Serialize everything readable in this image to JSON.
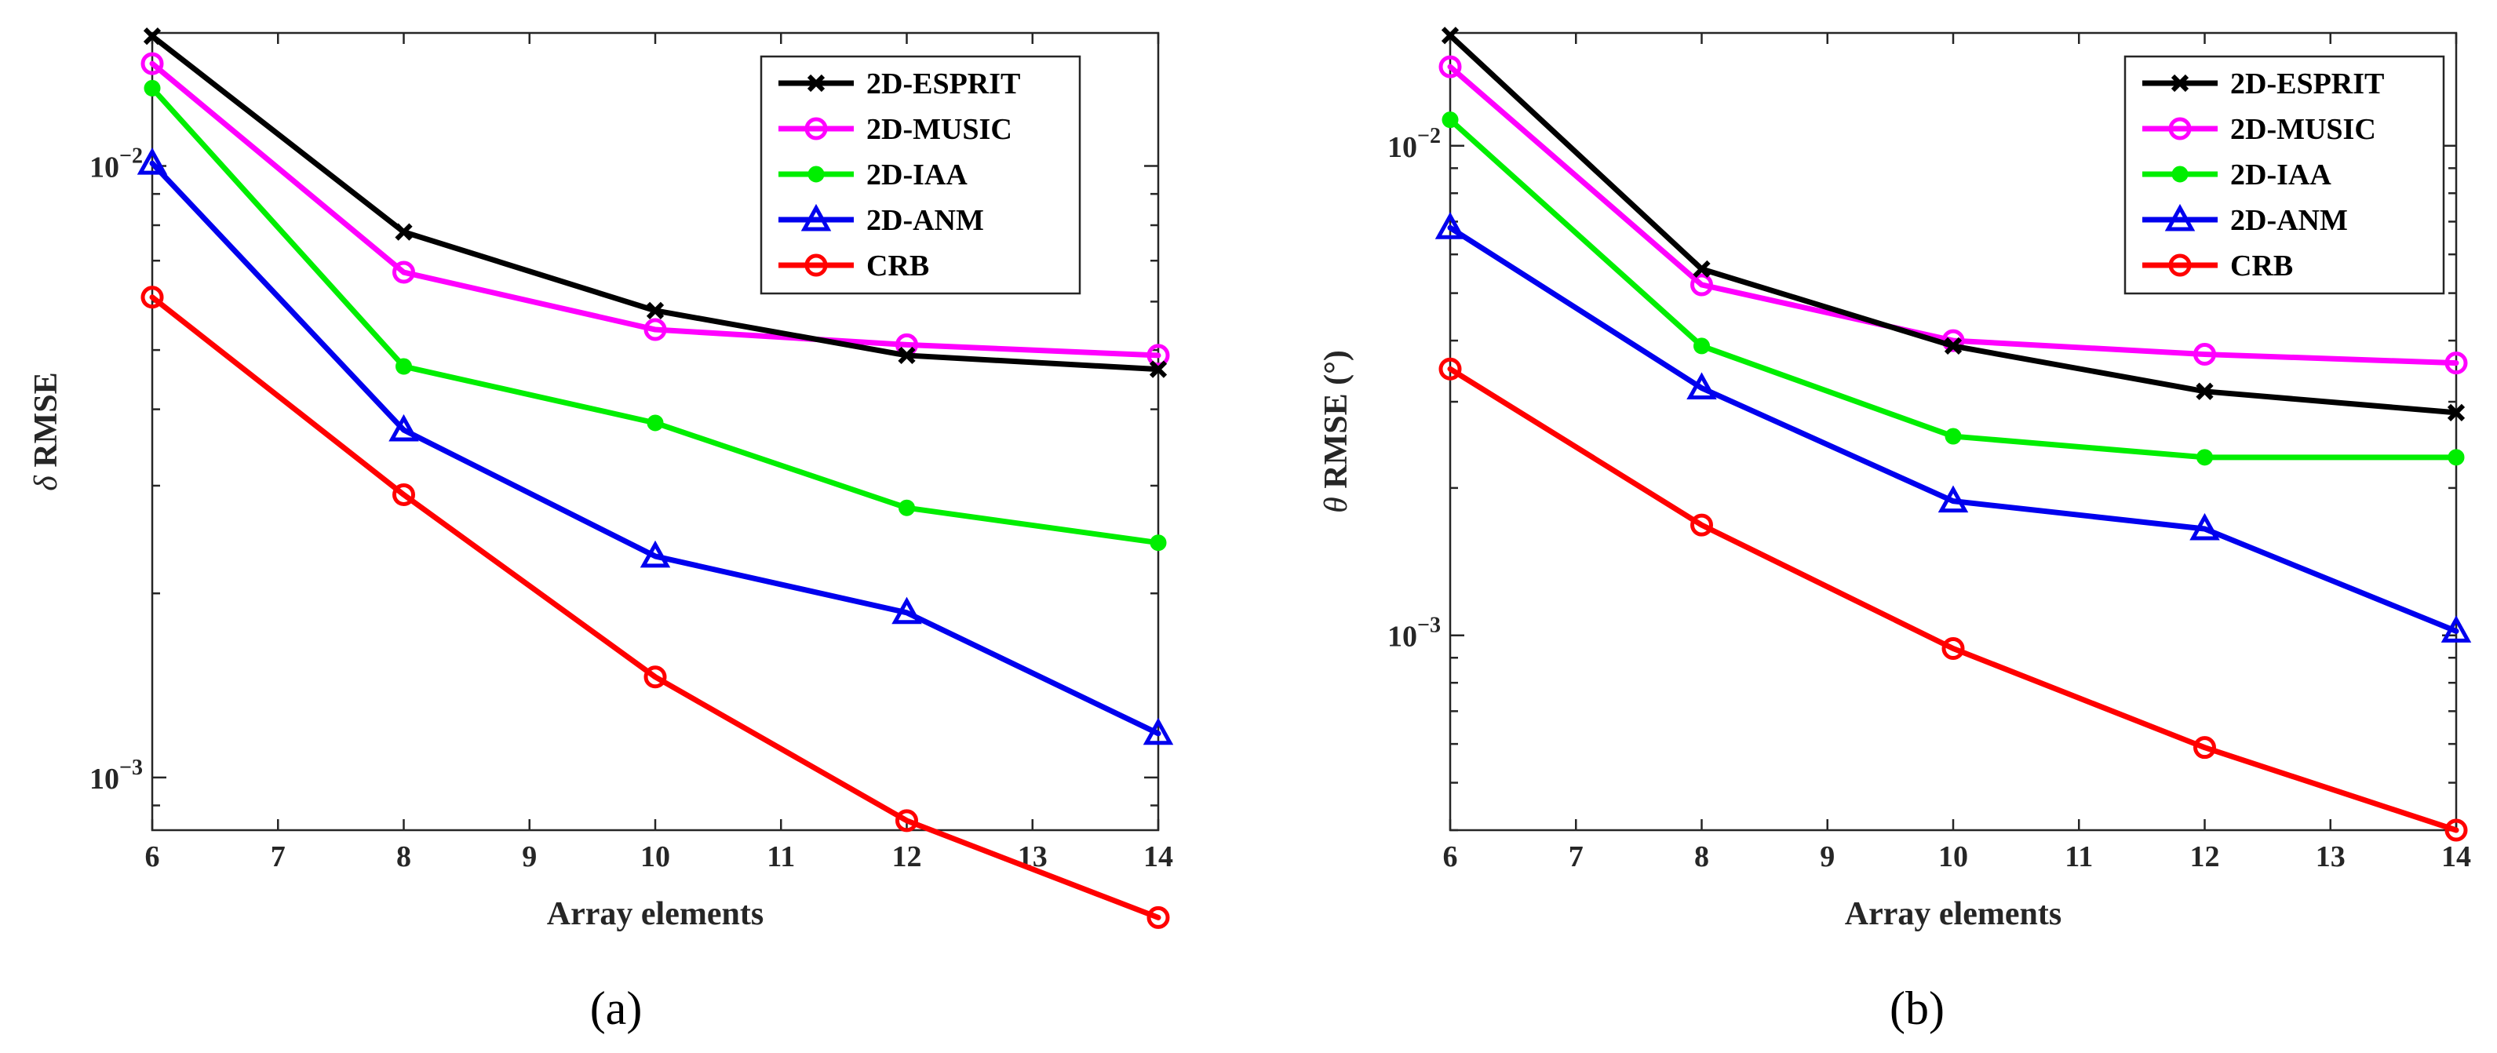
{
  "chart_data": [
    {
      "type": "line",
      "caption": "(a)",
      "xlabel": "Array elements",
      "ylabel_symbol": "δ",
      "ylabel_text": " RMSE",
      "yscale": "log",
      "xlim": [
        6,
        14
      ],
      "ylim": [
        0.00082,
        0.0165
      ],
      "xticks": [
        6,
        7,
        8,
        9,
        10,
        11,
        12,
        13,
        14
      ],
      "yticks": [
        {
          "value": 0.001,
          "label_base": "10",
          "label_exp": "−3"
        },
        {
          "value": 0.01,
          "label_base": "10",
          "label_exp": "−2"
        }
      ],
      "legend_position": "top-right",
      "x": [
        6,
        8,
        10,
        12,
        14
      ],
      "series": [
        {
          "name": "2D-ESPRIT",
          "values": [
            0.0163,
            0.0078,
            0.0058,
            0.0049,
            0.00465
          ],
          "color": "#000000",
          "marker": "x"
        },
        {
          "name": "2D-MUSIC",
          "values": [
            0.0147,
            0.0067,
            0.0054,
            0.0051,
            0.0049
          ],
          "color": "#ff00ff",
          "marker": "circle"
        },
        {
          "name": "2D-IAA",
          "values": [
            0.0134,
            0.0047,
            0.0038,
            0.00276,
            0.00242
          ],
          "color": "#00ee00",
          "marker": "dot"
        },
        {
          "name": "2D-ANM",
          "values": [
            0.0101,
            0.0037,
            0.0023,
            0.00186,
            0.00118
          ],
          "color": "#0000ee",
          "marker": "triangle"
        },
        {
          "name": "CRB",
          "values": [
            0.0061,
            0.0029,
            0.00146,
            0.00085,
            0.00059
          ],
          "color": "#ff0000",
          "marker": "circle"
        }
      ]
    },
    {
      "type": "line",
      "caption": "(b)",
      "xlabel": "Array elements",
      "ylabel_symbol": "θ",
      "ylabel_text": " RMSE (°)",
      "yscale": "log",
      "xlim": [
        6,
        14
      ],
      "ylim": [
        0.0004,
        0.017
      ],
      "xticks": [
        6,
        7,
        8,
        9,
        10,
        11,
        12,
        13,
        14
      ],
      "yticks": [
        {
          "value": 0.001,
          "label_base": "10",
          "label_exp": "−3"
        },
        {
          "value": 0.01,
          "label_base": "10",
          "label_exp": "−2"
        }
      ],
      "legend_position": "top-right",
      "x": [
        6,
        8,
        10,
        12,
        14
      ],
      "series": [
        {
          "name": "2D-ESPRIT",
          "values": [
            0.0168,
            0.0056,
            0.0039,
            0.00315,
            0.00285
          ],
          "color": "#000000",
          "marker": "x"
        },
        {
          "name": "2D-MUSIC",
          "values": [
            0.0145,
            0.0052,
            0.004,
            0.00375,
            0.0036
          ],
          "color": "#ff00ff",
          "marker": "circle"
        },
        {
          "name": "2D-IAA",
          "values": [
            0.0113,
            0.0039,
            0.00255,
            0.00231,
            0.00231
          ],
          "color": "#00ee00",
          "marker": "dot"
        },
        {
          "name": "2D-ANM",
          "values": [
            0.0068,
            0.0032,
            0.00188,
            0.00165,
            0.00102
          ],
          "color": "#0000ee",
          "marker": "triangle"
        },
        {
          "name": "CRB",
          "values": [
            0.0035,
            0.00168,
            0.00094,
            0.00059,
            0.0004
          ],
          "color": "#ff0000",
          "marker": "circle"
        }
      ]
    }
  ]
}
